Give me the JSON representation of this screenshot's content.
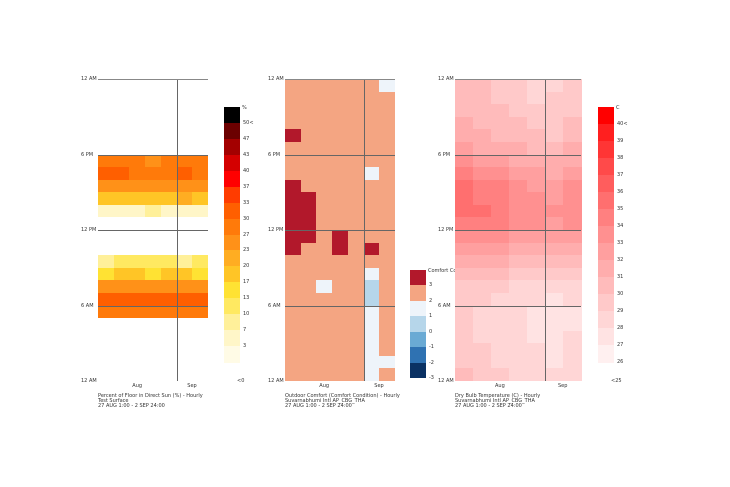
{
  "chart_data": [
    {
      "type": "heatmap",
      "title": "Percent of Floor in Direct Sun (%) - Hourly",
      "subtitle": "Test Surface",
      "period": "27 AUG 1:00 - 2 SEP 24:00",
      "y_ticks": [
        "12 AM",
        "6 PM",
        "12 PM",
        "6 AM",
        "12 AM"
      ],
      "x_ticks": [
        "Aug",
        "Sep"
      ],
      "legend_title": "%",
      "legend_labels": [
        "50<",
        "47",
        "43",
        "40",
        "37",
        "33",
        "30",
        "27",
        "23",
        "20",
        "17",
        "13",
        "10",
        "7",
        "3"
      ],
      "legend_min": "<0",
      "thresholds": [
        3,
        7,
        10,
        13,
        17,
        20,
        23,
        27,
        30,
        33,
        37,
        40,
        43,
        47,
        50
      ],
      "colors": [
        "#fffbe6",
        "#fff6c8",
        "#fff09a",
        "#ffe961",
        "#ffe233",
        "#ffc526",
        "#ffad22",
        "#ff9118",
        "#ff7a0a",
        "#ff5f00",
        "#ff3c00",
        "#ff0000",
        "#d40000",
        "#a30000",
        "#6b0000",
        "#000000"
      ],
      "values": [
        [
          0,
          0,
          0,
          0,
          0,
          0,
          0
        ],
        [
          0,
          0,
          0,
          0,
          0,
          0,
          0
        ],
        [
          0,
          0,
          0,
          0,
          0,
          0,
          0
        ],
        [
          0,
          0,
          0,
          0,
          0,
          0,
          0
        ],
        [
          0,
          0,
          0,
          0,
          0,
          0,
          0
        ],
        [
          0,
          0,
          0,
          0,
          0,
          0,
          0
        ],
        [
          30,
          30,
          30,
          27,
          30,
          30,
          30
        ],
        [
          33,
          33,
          30,
          30,
          30,
          33,
          30
        ],
        [
          27,
          27,
          27,
          27,
          27,
          27,
          27
        ],
        [
          20,
          20,
          20,
          20,
          20,
          23,
          20
        ],
        [
          7,
          7,
          7,
          10,
          7,
          7,
          7
        ],
        [
          0,
          0,
          0,
          0,
          0,
          0,
          0
        ],
        [
          0,
          0,
          0,
          0,
          0,
          0,
          0
        ],
        [
          0,
          0,
          0,
          0,
          0,
          0,
          0
        ],
        [
          10,
          13,
          13,
          13,
          13,
          10,
          13
        ],
        [
          17,
          20,
          20,
          17,
          20,
          20,
          17
        ],
        [
          27,
          27,
          27,
          27,
          27,
          27,
          27
        ],
        [
          33,
          33,
          33,
          33,
          33,
          33,
          33
        ],
        [
          30,
          30,
          30,
          30,
          30,
          30,
          30
        ],
        [
          0,
          0,
          0,
          0,
          0,
          0,
          0
        ],
        [
          0,
          0,
          0,
          0,
          0,
          0,
          0
        ],
        [
          0,
          0,
          0,
          0,
          0,
          0,
          0
        ],
        [
          0,
          0,
          0,
          0,
          0,
          0,
          0
        ],
        [
          0,
          0,
          0,
          0,
          0,
          0,
          0
        ]
      ]
    },
    {
      "type": "heatmap",
      "title": "Outdoor Comfort (Comfort Condition) - Hourly",
      "subtitle": "Suvarnabhumi Intl AP_CBG_THA",
      "period": "27 AUG 1:00 - 2 SEP 24:00",
      "y_ticks": [
        "12 AM",
        "6 PM",
        "12 PM",
        "6 AM",
        "12 AM"
      ],
      "x_ticks": [
        "Aug",
        "Sep"
      ],
      "legend_title": "Comfort Condition",
      "legend_labels": [
        "3",
        "2",
        "1",
        "0",
        "-1",
        "-2",
        "-3"
      ],
      "levels": [
        4,
        3,
        2,
        1,
        0,
        -1,
        -2
      ],
      "colors": {
        "4": "#b2182b",
        "3": "#f4a582",
        "2": "#eef4fa",
        "1": "#b6d6ea",
        "0": "#6aaad4",
        "-1": "#2f72b2",
        "-2": "#0a3163"
      },
      "values": [
        [
          3,
          3,
          3,
          3,
          3,
          3,
          2
        ],
        [
          3,
          3,
          3,
          3,
          3,
          3,
          3
        ],
        [
          3,
          3,
          3,
          3,
          3,
          3,
          3
        ],
        [
          3,
          3,
          3,
          3,
          3,
          3,
          3
        ],
        [
          4,
          3,
          3,
          3,
          3,
          3,
          3
        ],
        [
          3,
          3,
          3,
          3,
          3,
          3,
          3
        ],
        [
          3,
          3,
          3,
          3,
          3,
          3,
          3
        ],
        [
          3,
          3,
          3,
          3,
          3,
          2,
          3
        ],
        [
          4,
          3,
          3,
          3,
          3,
          3,
          3
        ],
        [
          4,
          4,
          3,
          3,
          3,
          3,
          3
        ],
        [
          4,
          4,
          3,
          3,
          3,
          3,
          3
        ],
        [
          4,
          4,
          3,
          3,
          3,
          3,
          3
        ],
        [
          4,
          4,
          3,
          4,
          3,
          3,
          3
        ],
        [
          4,
          3,
          3,
          4,
          3,
          4,
          3
        ],
        [
          3,
          3,
          3,
          3,
          3,
          3,
          3
        ],
        [
          3,
          3,
          3,
          3,
          3,
          2,
          3
        ],
        [
          3,
          3,
          2,
          3,
          3,
          1,
          3
        ],
        [
          3,
          3,
          3,
          3,
          3,
          1,
          3
        ],
        [
          3,
          3,
          3,
          3,
          3,
          2,
          3
        ],
        [
          3,
          3,
          3,
          3,
          3,
          2,
          3
        ],
        [
          3,
          3,
          3,
          3,
          3,
          2,
          3
        ],
        [
          3,
          3,
          3,
          3,
          3,
          2,
          3
        ],
        [
          3,
          3,
          3,
          3,
          3,
          2,
          2
        ],
        [
          3,
          3,
          3,
          3,
          3,
          2,
          3
        ]
      ]
    },
    {
      "type": "heatmap",
      "title": "Dry Bulb Temperature (C) - Hourly",
      "subtitle": "Suvarnabhumi Intl AP_CBG_THA",
      "period": "27 AUG 1:00 - 2 SEP 24:00",
      "y_ticks": [
        "12 AM",
        "6 PM",
        "12 PM",
        "6 AM",
        "12 AM"
      ],
      "x_ticks": [
        "Aug",
        "Sep"
      ],
      "legend_title": "C",
      "legend_labels": [
        "40<",
        "39",
        "38",
        "37",
        "36",
        "35",
        "34",
        "33",
        "32",
        "31",
        "30",
        "29",
        "28",
        "27",
        "26"
      ],
      "legend_min": "<25",
      "min": 26,
      "max": 41,
      "values": [
        [
          30,
          30,
          29,
          29,
          28,
          28,
          29
        ],
        [
          30,
          30,
          29,
          29,
          28,
          29,
          29
        ],
        [
          30,
          30,
          30,
          29,
          29,
          29,
          29
        ],
        [
          31,
          30,
          30,
          30,
          29,
          29,
          30
        ],
        [
          31,
          31,
          30,
          30,
          30,
          29,
          30
        ],
        [
          32,
          31,
          31,
          31,
          30,
          30,
          31
        ],
        [
          33,
          32,
          32,
          31,
          31,
          31,
          31
        ],
        [
          34,
          33,
          33,
          32,
          32,
          31,
          32
        ],
        [
          35,
          34,
          34,
          33,
          32,
          32,
          33
        ],
        [
          35,
          34,
          34,
          33,
          33,
          32,
          33
        ],
        [
          35,
          35,
          34,
          33,
          33,
          33,
          33
        ],
        [
          34,
          34,
          34,
          33,
          33,
          32,
          33
        ],
        [
          33,
          33,
          33,
          32,
          32,
          32,
          32
        ],
        [
          32,
          32,
          32,
          31,
          31,
          31,
          31
        ],
        [
          31,
          31,
          31,
          30,
          30,
          30,
          30
        ],
        [
          30,
          30,
          30,
          29,
          29,
          29,
          29
        ],
        [
          29,
          29,
          29,
          28,
          28,
          28,
          28
        ],
        [
          29,
          29,
          28,
          28,
          28,
          27,
          28
        ],
        [
          29,
          28,
          28,
          28,
          27,
          27,
          27
        ],
        [
          29,
          28,
          28,
          28,
          27,
          27,
          27
        ],
        [
          29,
          28,
          28,
          28,
          27,
          27,
          28
        ],
        [
          29,
          29,
          28,
          28,
          28,
          27,
          28
        ],
        [
          29,
          29,
          28,
          28,
          28,
          27,
          28
        ],
        [
          30,
          29,
          29,
          28,
          28,
          28,
          28
        ]
      ],
      "colors": [
        "#fff0f0",
        "#ffe3e3",
        "#ffd6d6",
        "#ffc9c9",
        "#ffbbbb",
        "#ffadad",
        "#ff9f9f",
        "#ff9090",
        "#ff8080",
        "#ff6f6f",
        "#ff5d5d",
        "#ff4a4a",
        "#ff3535",
        "#ff1f1f",
        "#ff0000"
      ]
    }
  ]
}
